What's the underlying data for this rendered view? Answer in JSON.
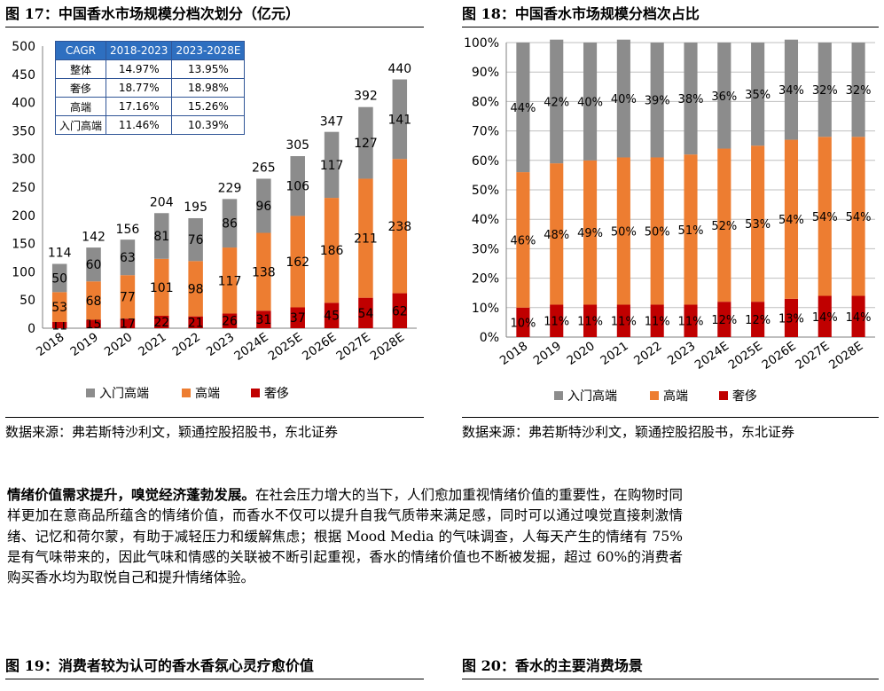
{
  "figures": {
    "fig17": {
      "title": "图 17：中国香水市场规模分档次划分（亿元）"
    },
    "fig18": {
      "title": "图 18：中国香水市场规模分档次占比"
    },
    "fig19": {
      "title": "图 19：消费者较为认可的香水香氛心灵疗愈价值"
    },
    "fig20": {
      "title": "图 20：香水的主要消费场景"
    }
  },
  "source_left": "数据来源：弗若斯特沙利文，颖通控股招股书，东北证券",
  "source_right": "数据来源：弗若斯特沙利文，颖通控股招股书，东北证券",
  "paragraph": {
    "lead": "情绪价值需求提升，嗅觉经济蓬勃发展。",
    "body": "在社会压力增大的当下，人们愈加重视情绪价值的重要性，在购物时同样更加在意商品所蕴含的情绪价值，而香水不仅可以提升自我气质带来满足感，同时可以通过嗅觉直接刺激情绪、记忆和荷尔蒙，有助于减轻压力和缓解焦虑；根据 Mood Media 的气味调查，人每天产生的情绪有 75%是有气味带来的，因此气味和情感的关联被不断引起重视，香水的情绪价值也不断被发掘，超过 60%的消费者购买香水均为取悦自己和提升情绪体验。"
  },
  "cagr_table": {
    "headers": [
      "CAGR",
      "2018-2023",
      "2023-2028E"
    ],
    "rows": [
      [
        "整体",
        "14.97%",
        "13.95%"
      ],
      [
        "奢侈",
        "18.77%",
        "18.98%"
      ],
      [
        "高端",
        "17.16%",
        "15.26%"
      ],
      [
        "入门高端",
        "11.46%",
        "10.39%"
      ]
    ]
  },
  "colors": {
    "luxury": "#c00000",
    "premium": "#ed7d31",
    "entry": "#8c8c8c"
  },
  "chart_data": [
    {
      "type": "bar",
      "stacked": true,
      "categories": [
        "2018",
        "2019",
        "2020",
        "2021",
        "2022",
        "2023",
        "2024E",
        "2025E",
        "2026E",
        "2027E",
        "2028E"
      ],
      "series": [
        {
          "name": "奢侈",
          "values": [
            11,
            15,
            17,
            22,
            21,
            26,
            31,
            37,
            45,
            54,
            62
          ]
        },
        {
          "name": "高端",
          "values": [
            53,
            68,
            77,
            101,
            98,
            117,
            138,
            162,
            186,
            211,
            238
          ]
        },
        {
          "name": "入门高端",
          "values": [
            50,
            60,
            63,
            81,
            76,
            86,
            96,
            106,
            117,
            127,
            141
          ]
        }
      ],
      "totals": [
        114,
        142,
        156,
        204,
        195,
        229,
        265,
        305,
        347,
        392,
        440
      ],
      "yticks": [
        "0",
        "50",
        "100",
        "150",
        "200",
        "250",
        "300",
        "350",
        "400",
        "450",
        "500"
      ],
      "ylim": [
        0,
        500
      ],
      "legend": [
        "入门高端",
        "高端",
        "奢侈"
      ],
      "legend_position": "bottom"
    },
    {
      "type": "bar",
      "stacked": true,
      "percent": true,
      "categories": [
        "2018",
        "2019",
        "2020",
        "2021",
        "2022",
        "2023",
        "2024E",
        "2025E",
        "2026E",
        "2027E",
        "2028E"
      ],
      "series": [
        {
          "name": "奢侈",
          "values": [
            10,
            11,
            11,
            11,
            11,
            11,
            12,
            12,
            13,
            14,
            14
          ]
        },
        {
          "name": "高端",
          "values": [
            46,
            48,
            49,
            50,
            50,
            51,
            52,
            53,
            54,
            54,
            54
          ]
        },
        {
          "name": "入门高端",
          "values": [
            44,
            42,
            40,
            40,
            39,
            38,
            36,
            35,
            34,
            32,
            32
          ]
        }
      ],
      "yticks": [
        "0%",
        "10%",
        "20%",
        "30%",
        "40%",
        "50%",
        "60%",
        "70%",
        "80%",
        "90%",
        "100%"
      ],
      "ylim": [
        0,
        100
      ],
      "legend": [
        "入门高端",
        "高端",
        "奢侈"
      ],
      "legend_position": "bottom"
    }
  ]
}
